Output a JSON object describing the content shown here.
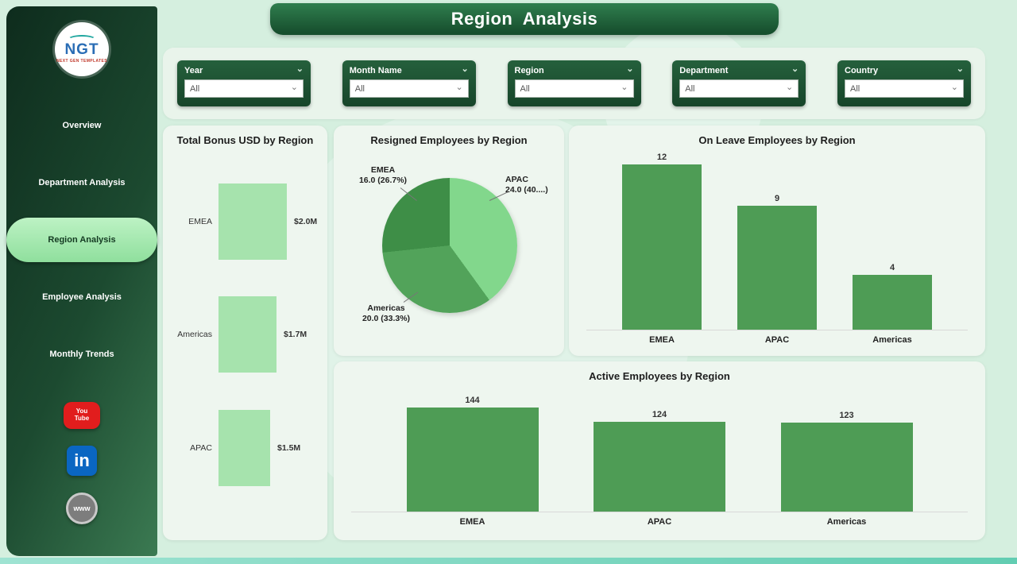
{
  "app": {
    "title": "Region  Analysis"
  },
  "sidebar": {
    "logo": {
      "text": "NGT",
      "subtext": "NEXT GEN TEMPLATES"
    },
    "items": [
      {
        "label": "Overview",
        "active": false
      },
      {
        "label": "Department Analysis",
        "active": false
      },
      {
        "label": "Region Analysis",
        "active": true
      },
      {
        "label": "Employee Analysis",
        "active": false
      },
      {
        "label": "Monthly Trends",
        "active": false
      }
    ],
    "social": [
      {
        "name": "youtube",
        "label": "You Tube"
      },
      {
        "name": "linkedin",
        "label": "in"
      },
      {
        "name": "website",
        "label": "www"
      }
    ]
  },
  "filters": [
    {
      "label": "Year",
      "value": "All"
    },
    {
      "label": "Month Name",
      "value": "All"
    },
    {
      "label": "Region",
      "value": "All"
    },
    {
      "label": "Department",
      "value": "All"
    },
    {
      "label": "Country",
      "value": "All"
    }
  ],
  "colors": {
    "sidebar_dark": "#16382a",
    "accent_dark_green": "#1d5434",
    "active_pill": "#9fe7ab",
    "bar_light_green": "#a6e3ad",
    "bar_medium_green": "#4e9c55",
    "pie_apac": "#82d78c",
    "pie_americas": "#52a35a",
    "pie_emea": "#3e8e47"
  },
  "chart_data": [
    {
      "type": "bar",
      "orientation": "horizontal",
      "title": "Total Bonus USD by Region",
      "categories": [
        "EMEA",
        "Americas",
        "APAC"
      ],
      "values": [
        2.0,
        1.7,
        1.5
      ],
      "value_labels": [
        "$2.0M",
        "$1.7M",
        "$1.5M"
      ]
    },
    {
      "type": "pie",
      "title": "Resigned Employees by Region",
      "categories": [
        "APAC",
        "Americas",
        "EMEA"
      ],
      "values": [
        24.0,
        20.0,
        16.0
      ],
      "labels": [
        {
          "name": "APAC",
          "detail": "24.0 (40....)"
        },
        {
          "name": "Americas",
          "detail": "20.0 (33.3%)"
        },
        {
          "name": "EMEA",
          "detail": "16.0 (26.7%)"
        }
      ]
    },
    {
      "type": "bar",
      "title": "On Leave Employees by Region",
      "categories": [
        "EMEA",
        "APAC",
        "Americas"
      ],
      "values": [
        12,
        9,
        4
      ]
    },
    {
      "type": "bar",
      "title": "Active Employees by Region",
      "categories": [
        "EMEA",
        "APAC",
        "Americas"
      ],
      "values": [
        144,
        124,
        123
      ]
    }
  ]
}
